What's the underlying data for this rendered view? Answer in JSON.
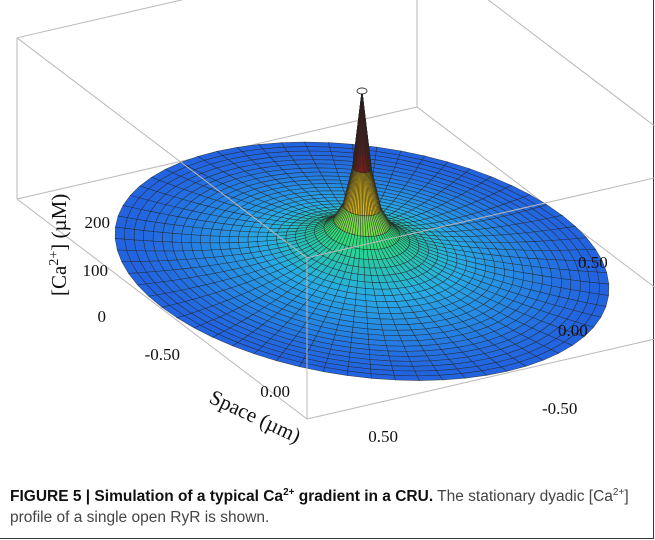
{
  "chart_data": {
    "type": "surface3d",
    "title": "",
    "z_axis": {
      "label_pre": "[Ca",
      "label_sup": "2+",
      "label_post": "] (µM)",
      "ticks": [
        "0",
        "100",
        "200"
      ],
      "range": [
        0,
        260
      ]
    },
    "x_axis": {
      "label": "Space (µm)",
      "ticks": [
        "-0.50",
        "0.00",
        "0.50"
      ],
      "range": [
        -0.75,
        0.75
      ]
    },
    "y_axis": {
      "label": "",
      "ticks": [
        "-0.50",
        "0.00",
        "0.50"
      ],
      "range": [
        -0.75,
        0.75
      ]
    },
    "surface": {
      "domain": "disk",
      "radius_um": 0.75,
      "peak_uM": 250,
      "peak_location_um": [
        0.0,
        0.0
      ],
      "colormap": "blue-cyan-green-yellow-red",
      "mesh": true
    }
  },
  "caption": {
    "bold_pre": "FIGURE 5 | Simulation of a typical Ca",
    "bold_sup": "2+",
    "bold_post": " gradient in a CRU.",
    "line2_pre": " The stationary dyadic [Ca",
    "line2_sup": "2+",
    "line2_post": "] profile of a single open RyR is shown."
  },
  "colors": {
    "box": "#b8b8b8",
    "mesh": "#222222",
    "text": "#111111"
  }
}
